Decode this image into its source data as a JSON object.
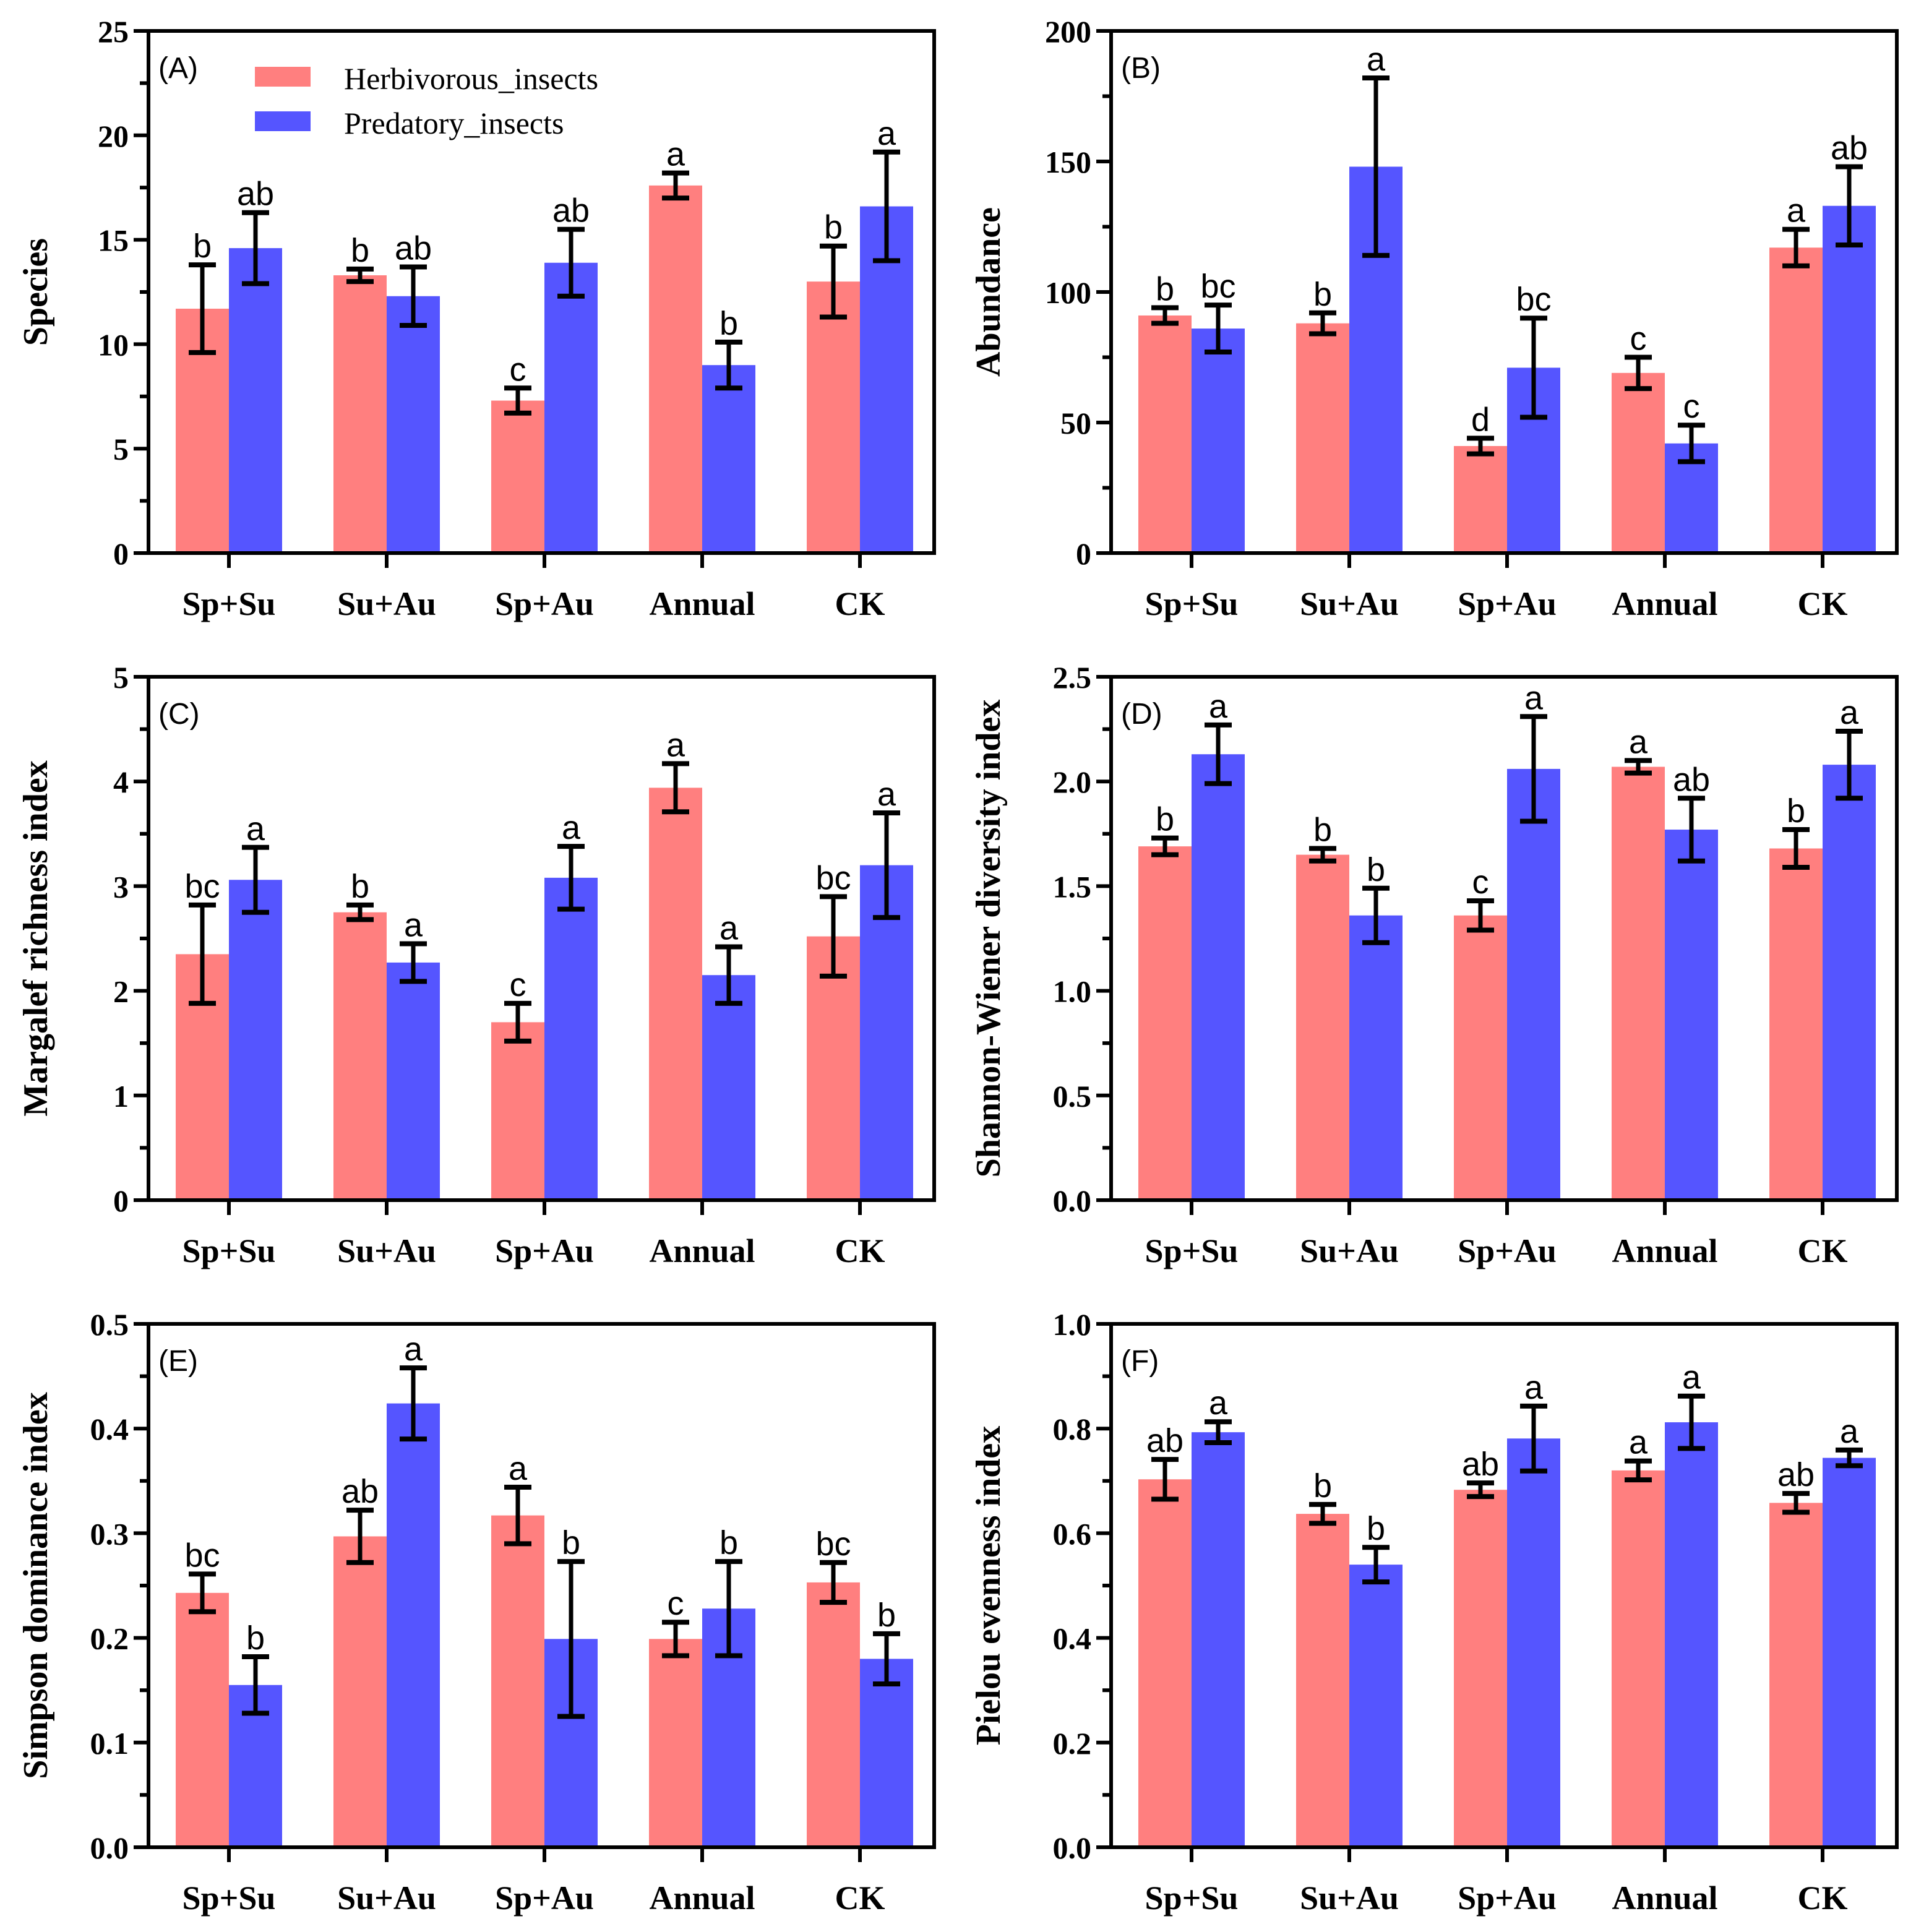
{
  "colors": {
    "herbivorous": "#FF7F7F",
    "predatory": "#5555FF"
  },
  "legend": [
    "Herbivorous_insects",
    "Predatory_insects"
  ],
  "chart_data": [
    {
      "type": "bar",
      "panel": "(A)",
      "ylabel": "Species",
      "ylim": [
        0,
        25
      ],
      "yticks": [
        "0",
        "5",
        "10",
        "15",
        "20",
        "25"
      ],
      "categories": [
        "Sp+Su",
        "Su+Au",
        "Sp+Au",
        "Annual",
        "CK"
      ],
      "series": [
        {
          "name": "Herbivorous_insects",
          "values": [
            11.7,
            13.3,
            7.3,
            17.6,
            13.0
          ],
          "errors": [
            2.1,
            0.3,
            0.6,
            0.6,
            1.7
          ],
          "letters": [
            "b",
            "b",
            "c",
            "a",
            "b"
          ]
        },
        {
          "name": "Predatory_insects",
          "values": [
            14.6,
            12.3,
            13.9,
            9.0,
            16.6
          ],
          "errors": [
            1.7,
            1.4,
            1.6,
            1.1,
            2.6
          ],
          "letters": [
            "ab",
            "ab",
            "ab",
            "b",
            "a"
          ]
        }
      ]
    },
    {
      "type": "bar",
      "panel": "(B)",
      "ylabel": "Abundance",
      "ylim": [
        0,
        200
      ],
      "yticks": [
        "0",
        "50",
        "100",
        "150",
        "200"
      ],
      "categories": [
        "Sp+Su",
        "Su+Au",
        "Sp+Au",
        "Annual",
        "CK"
      ],
      "series": [
        {
          "name": "Herbivorous_insects",
          "values": [
            91,
            88,
            41,
            69,
            117
          ],
          "errors": [
            3,
            4,
            3,
            6,
            7
          ],
          "letters": [
            "b",
            "b",
            "d",
            "c",
            "a"
          ]
        },
        {
          "name": "Predatory_insects",
          "values": [
            86,
            148,
            71,
            42,
            133
          ],
          "errors": [
            9,
            34,
            19,
            7,
            15
          ],
          "letters": [
            "bc",
            "a",
            "bc",
            "c",
            "ab"
          ]
        }
      ]
    },
    {
      "type": "bar",
      "panel": "(C)",
      "ylabel": "Margalef richness index",
      "ylim": [
        0,
        5
      ],
      "yticks": [
        "0",
        "1",
        "2",
        "3",
        "4",
        "5"
      ],
      "categories": [
        "Sp+Su",
        "Su+Au",
        "Sp+Au",
        "Annual",
        "CK"
      ],
      "series": [
        {
          "name": "Herbivorous_insects",
          "values": [
            2.35,
            2.75,
            1.7,
            3.94,
            2.52
          ],
          "errors": [
            0.47,
            0.07,
            0.18,
            0.23,
            0.38
          ],
          "letters": [
            "bc",
            "b",
            "c",
            "a",
            "bc"
          ]
        },
        {
          "name": "Predatory_insects",
          "values": [
            3.06,
            2.27,
            3.08,
            2.15,
            3.2
          ],
          "errors": [
            0.31,
            0.18,
            0.3,
            0.27,
            0.5
          ],
          "letters": [
            "a",
            "a",
            "a",
            "a",
            "a"
          ]
        }
      ]
    },
    {
      "type": "bar",
      "panel": "(D)",
      "ylabel": "Shannon-Wiener diversity index",
      "ylim": [
        0,
        2.5
      ],
      "yticks": [
        "0.0",
        "0.5",
        "1.0",
        "1.5",
        "2.0",
        "2.5"
      ],
      "categories": [
        "Sp+Su",
        "Su+Au",
        "Sp+Au",
        "Annual",
        "CK"
      ],
      "series": [
        {
          "name": "Herbivorous_insects",
          "values": [
            1.69,
            1.65,
            1.36,
            2.07,
            1.68
          ],
          "errors": [
            0.04,
            0.03,
            0.07,
            0.03,
            0.09
          ],
          "letters": [
            "b",
            "b",
            "c",
            "a",
            "b"
          ]
        },
        {
          "name": "Predatory_insects",
          "values": [
            2.13,
            1.36,
            2.06,
            1.77,
            2.08
          ],
          "errors": [
            0.14,
            0.13,
            0.25,
            0.15,
            0.16
          ],
          "letters": [
            "a",
            "b",
            "a",
            "ab",
            "a"
          ]
        }
      ]
    },
    {
      "type": "bar",
      "panel": "(E)",
      "ylabel": "Simpson dominance index",
      "ylim": [
        0,
        0.5
      ],
      "yticks": [
        "0.0",
        "0.1",
        "0.2",
        "0.3",
        "0.4",
        "0.5"
      ],
      "categories": [
        "Sp+Su",
        "Su+Au",
        "Sp+Au",
        "Annual",
        "CK"
      ],
      "series": [
        {
          "name": "Herbivorous_insects",
          "values": [
            0.243,
            0.297,
            0.317,
            0.199,
            0.253
          ],
          "errors": [
            0.018,
            0.025,
            0.027,
            0.016,
            0.019
          ],
          "letters": [
            "bc",
            "ab",
            "a",
            "c",
            "bc"
          ]
        },
        {
          "name": "Predatory_insects",
          "values": [
            0.155,
            0.424,
            0.199,
            0.228,
            0.18
          ],
          "errors": [
            0.027,
            0.034,
            0.074,
            0.045,
            0.024
          ],
          "letters": [
            "b",
            "a",
            "b",
            "b",
            "b"
          ]
        }
      ]
    },
    {
      "type": "bar",
      "panel": "(F)",
      "ylabel": "Pielou evenness index",
      "ylim": [
        0,
        1.0
      ],
      "yticks": [
        "0.0",
        "0.2",
        "0.4",
        "0.6",
        "0.8",
        "1.0"
      ],
      "categories": [
        "Sp+Su",
        "Su+Au",
        "Sp+Au",
        "Annual",
        "CK"
      ],
      "series": [
        {
          "name": "Herbivorous_insects",
          "values": [
            0.703,
            0.637,
            0.683,
            0.72,
            0.658
          ],
          "errors": [
            0.038,
            0.018,
            0.013,
            0.018,
            0.018
          ],
          "letters": [
            "ab",
            "b",
            "ab",
            "a",
            "ab"
          ]
        },
        {
          "name": "Predatory_insects",
          "values": [
            0.793,
            0.54,
            0.781,
            0.812,
            0.744
          ],
          "errors": [
            0.02,
            0.033,
            0.062,
            0.05,
            0.015
          ],
          "letters": [
            "a",
            "b",
            "a",
            "a",
            "a"
          ]
        }
      ]
    }
  ]
}
